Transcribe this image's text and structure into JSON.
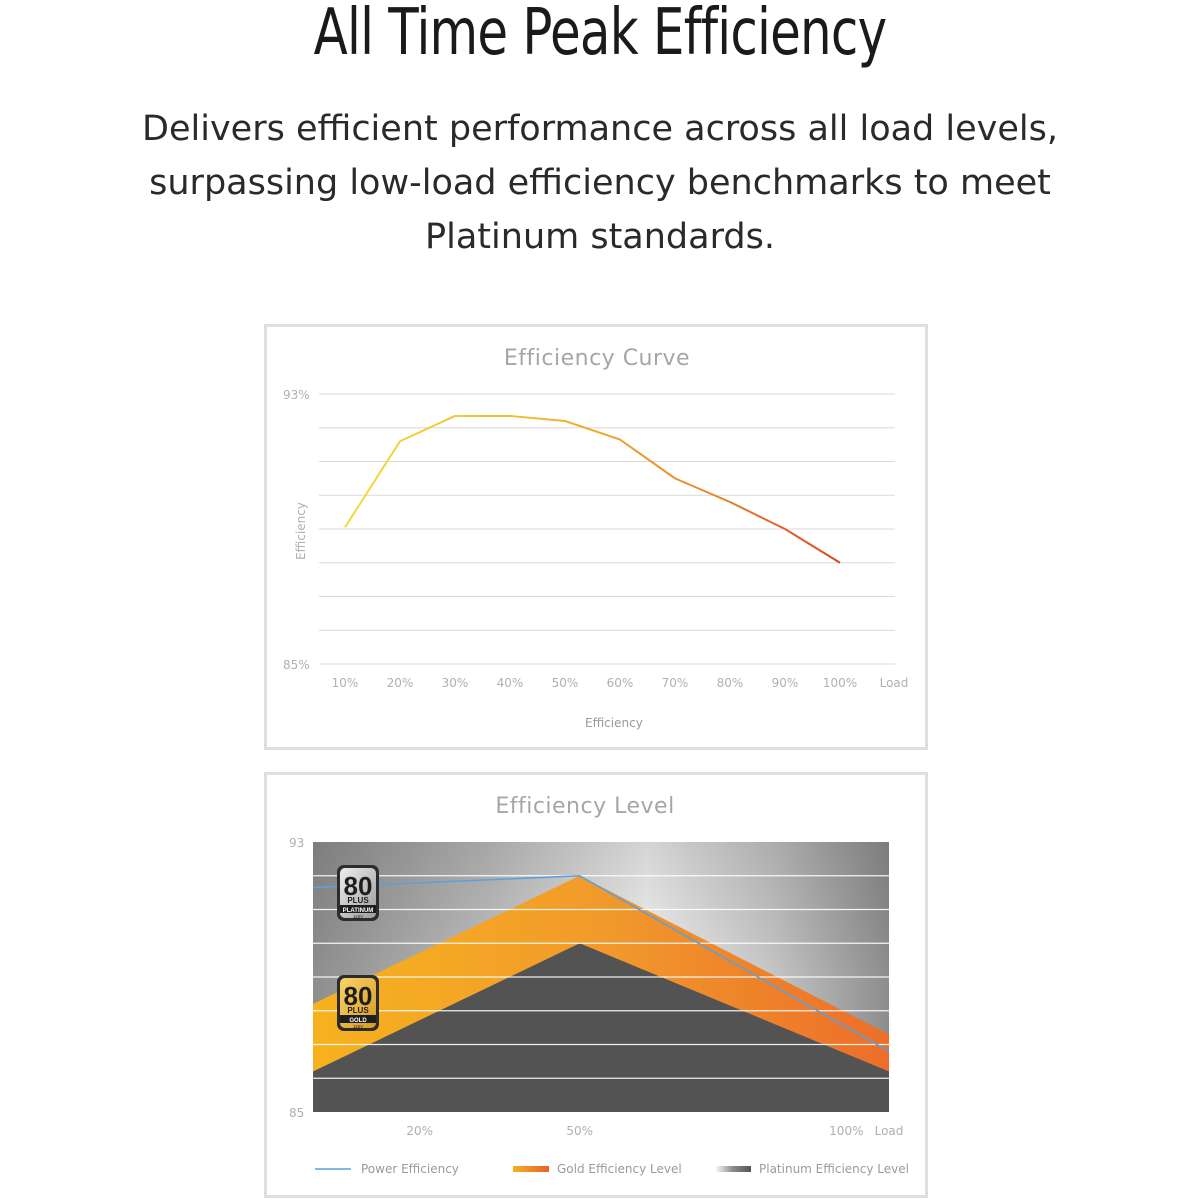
{
  "header": {
    "title": "All Time Peak Efficiency",
    "subtitle_lines": [
      "Delivers efficient performance across all load levels,",
      "surpassing low-load efficiency benchmarks to meet",
      "Platinum standards."
    ]
  },
  "chart_data": [
    {
      "type": "line",
      "title": "Efficiency Curve",
      "ylabel": "Efficiency",
      "xlabel": "Load",
      "ylim": [
        85,
        93
      ],
      "ytick_labels": [
        "93%",
        "85%"
      ],
      "categories": [
        "10%",
        "20%",
        "30%",
        "40%",
        "50%",
        "60%",
        "70%",
        "80%",
        "90%",
        "100%"
      ],
      "series": [
        {
          "name": "Efficiency",
          "values": [
            89.05,
            91.6,
            92.35,
            92.35,
            92.2,
            91.65,
            90.5,
            89.8,
            89.0,
            88.0
          ]
        }
      ],
      "grid": true,
      "legend": "bottom-center",
      "colors": {
        "start": "#f3d93a",
        "mid": "#ef9d30",
        "end": "#d9452a"
      }
    },
    {
      "type": "area",
      "title": "Efficiency Level",
      "xlabel": "Load",
      "ylim": [
        85,
        93
      ],
      "ytick_labels": [
        "93",
        "85"
      ],
      "x_tick_labels": [
        "20%",
        "50%",
        "100%"
      ],
      "x_tick_values": [
        20,
        50,
        100
      ],
      "xlim": [
        0,
        108
      ],
      "series": [
        {
          "name": "Power Efficiency",
          "x": [
            0,
            50,
            108
          ],
          "values": [
            91.65,
            92.0,
            86.8
          ],
          "color": "#5e9fd9"
        },
        {
          "name": "Gold Efficiency Level",
          "x": [
            0,
            50,
            108
          ],
          "values": [
            88.2,
            92.0,
            87.3
          ],
          "color": "#f2a22a"
        },
        {
          "name": "Platinum Efficiency Level",
          "x": [
            0,
            50,
            108
          ],
          "values": [
            86.2,
            90.0,
            86.2
          ],
          "color": "#555555"
        }
      ],
      "badges": [
        {
          "number": "80",
          "brand": "PLUS",
          "tier": "PLATINUM",
          "voltage": "115V"
        },
        {
          "number": "80",
          "brand": "PLUS",
          "tier": "GOLD",
          "voltage": "115V"
        }
      ],
      "grid": true,
      "legend": "bottom"
    }
  ]
}
